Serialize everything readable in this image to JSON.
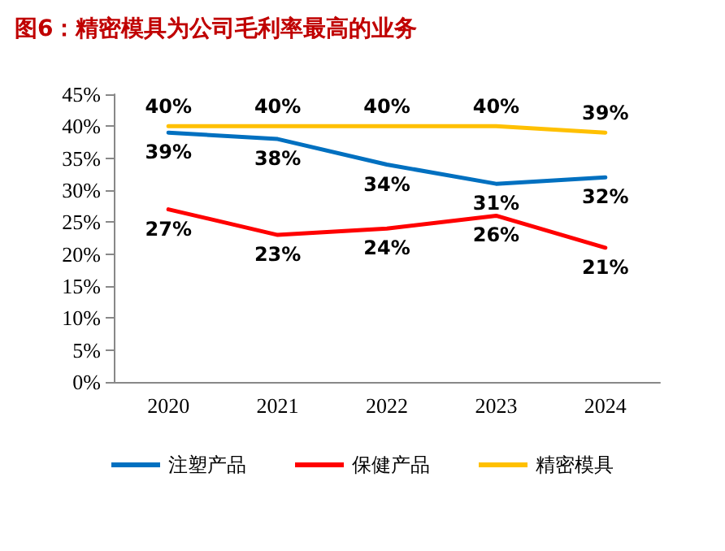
{
  "chart_data": {
    "type": "line",
    "title": "图6：精密模具为公司毛利率最高的业务",
    "categories": [
      "2020",
      "2021",
      "2022",
      "2023",
      "2024"
    ],
    "series": [
      {
        "name": "注塑产品",
        "color": "#0070c0",
        "values": [
          39,
          38,
          34,
          31,
          32
        ],
        "value_labels": [
          "39%",
          "38%",
          "34%",
          "31%",
          "32%"
        ]
      },
      {
        "name": "保健产品",
        "color": "#ff0000",
        "values": [
          27,
          23,
          24,
          26,
          21
        ],
        "value_labels": [
          "27%",
          "23%",
          "24%",
          "26%",
          "21%"
        ]
      },
      {
        "name": "精密模具",
        "color": "#ffc000",
        "values": [
          40,
          40,
          40,
          40,
          39
        ],
        "value_labels": [
          "40%",
          "40%",
          "40%",
          "40%",
          "39%"
        ]
      }
    ],
    "ylim": [
      0,
      45
    ],
    "yticks": [
      {
        "value": 0,
        "label": "0%"
      },
      {
        "value": 5,
        "label": "5%"
      },
      {
        "value": 10,
        "label": "10%"
      },
      {
        "value": 15,
        "label": "15%"
      },
      {
        "value": 20,
        "label": "20%"
      },
      {
        "value": 25,
        "label": "25%"
      },
      {
        "value": 30,
        "label": "30%"
      },
      {
        "value": 35,
        "label": "35%"
      },
      {
        "value": 40,
        "label": "40%"
      },
      {
        "value": 45,
        "label": "45%"
      }
    ],
    "grid": false,
    "legend": "bottom",
    "marker": "none",
    "line_style": "solid"
  }
}
